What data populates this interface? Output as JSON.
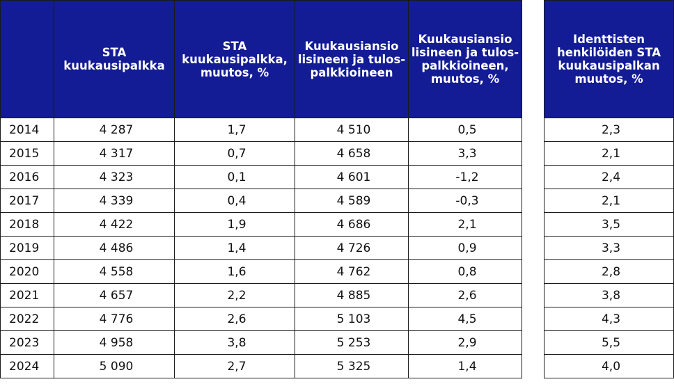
{
  "headers": [
    "",
    "STA kuukausipalkka",
    "STA kuukausipalkka, muutos, %",
    "Kuukausiansio lisineen ja tulos-palkkioineen",
    "Kuukausiansio lisineen ja tulos-palkkioineen, muutos, %",
    "Identtisten henkilöiden STA kuukausipalkan muutos, %"
  ],
  "rows": [
    {
      "year": "2014",
      "sta": "4 287",
      "sta_change": "1,7",
      "earnings": "4 510",
      "earnings_change": "0,5",
      "identical_change": "2,3"
    },
    {
      "year": "2015",
      "sta": "4 317",
      "sta_change": "0,7",
      "earnings": "4 658",
      "earnings_change": "3,3",
      "identical_change": "2,1"
    },
    {
      "year": "2016",
      "sta": "4 323",
      "sta_change": "0,1",
      "earnings": "4 601",
      "earnings_change": "-1,2",
      "identical_change": "2,4"
    },
    {
      "year": "2017",
      "sta": "4 339",
      "sta_change": "0,4",
      "earnings": "4 589",
      "earnings_change": "-0,3",
      "identical_change": "2,1"
    },
    {
      "year": "2018",
      "sta": "4 422",
      "sta_change": "1,9",
      "earnings": "4 686",
      "earnings_change": "2,1",
      "identical_change": "3,5"
    },
    {
      "year": "2019",
      "sta": "4 486",
      "sta_change": "1,4",
      "earnings": "4 726",
      "earnings_change": "0,9",
      "identical_change": "3,3"
    },
    {
      "year": "2020",
      "sta": "4 558",
      "sta_change": "1,6",
      "earnings": "4 762",
      "earnings_change": "0,8",
      "identical_change": "2,8"
    },
    {
      "year": "2021",
      "sta": "4 657",
      "sta_change": "2,2",
      "earnings": "4 885",
      "earnings_change": "2,6",
      "identical_change": "3,8"
    },
    {
      "year": "2022",
      "sta": "4 776",
      "sta_change": "2,6",
      "earnings": "5 103",
      "earnings_change": "4,5",
      "identical_change": "4,3"
    },
    {
      "year": "2023",
      "sta": "4 958",
      "sta_change": "3,8",
      "earnings": "5 253",
      "earnings_change": "2,9",
      "identical_change": "5,5"
    },
    {
      "year": "2024",
      "sta": "5 090",
      "sta_change": "2,7",
      "earnings": "5 325",
      "earnings_change": "1,4",
      "identical_change": "4,0"
    }
  ],
  "colors": {
    "header_bg": "#131c94",
    "header_text": "#ffffff"
  }
}
